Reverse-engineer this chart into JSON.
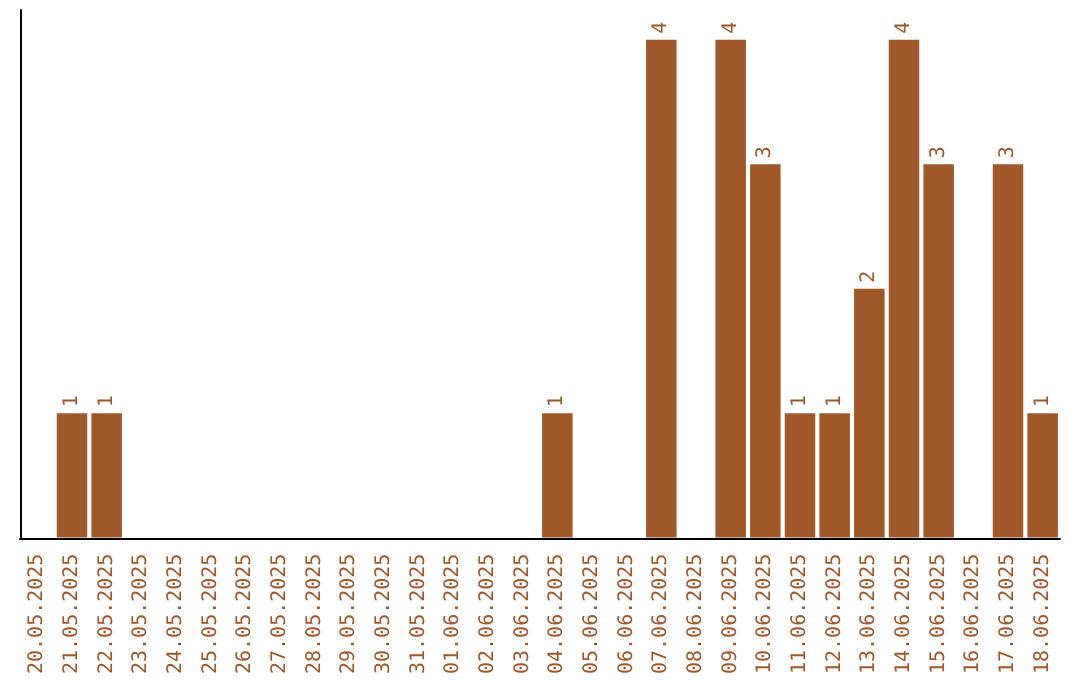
{
  "chart_data": {
    "type": "bar",
    "categories": [
      "20.05.2025",
      "21.05.2025",
      "22.05.2025",
      "23.05.2025",
      "24.05.2025",
      "25.05.2025",
      "26.05.2025",
      "27.05.2025",
      "28.05.2025",
      "29.05.2025",
      "30.05.2025",
      "31.05.2025",
      "01.06.2025",
      "02.06.2025",
      "03.06.2025",
      "04.06.2025",
      "05.06.2025",
      "06.06.2025",
      "07.06.2025",
      "08.06.2025",
      "09.06.2025",
      "10.06.2025",
      "11.06.2025",
      "12.06.2025",
      "13.06.2025",
      "14.06.2025",
      "15.06.2025",
      "16.06.2025",
      "17.06.2025",
      "18.06.2025"
    ],
    "values": [
      0,
      1,
      1,
      0,
      0,
      0,
      0,
      0,
      0,
      0,
      0,
      0,
      0,
      0,
      0,
      1,
      0,
      0,
      4,
      0,
      4,
      3,
      1,
      1,
      2,
      4,
      3,
      0,
      3,
      1
    ],
    "value_labels": [
      null,
      "1",
      "1",
      null,
      null,
      null,
      null,
      null,
      null,
      null,
      null,
      null,
      null,
      null,
      null,
      "1",
      null,
      null,
      "4",
      null,
      "4",
      "3",
      "1",
      "1",
      "2",
      "4",
      "3",
      null,
      "3",
      "1"
    ],
    "color": "#a0582a",
    "grid": false
  }
}
